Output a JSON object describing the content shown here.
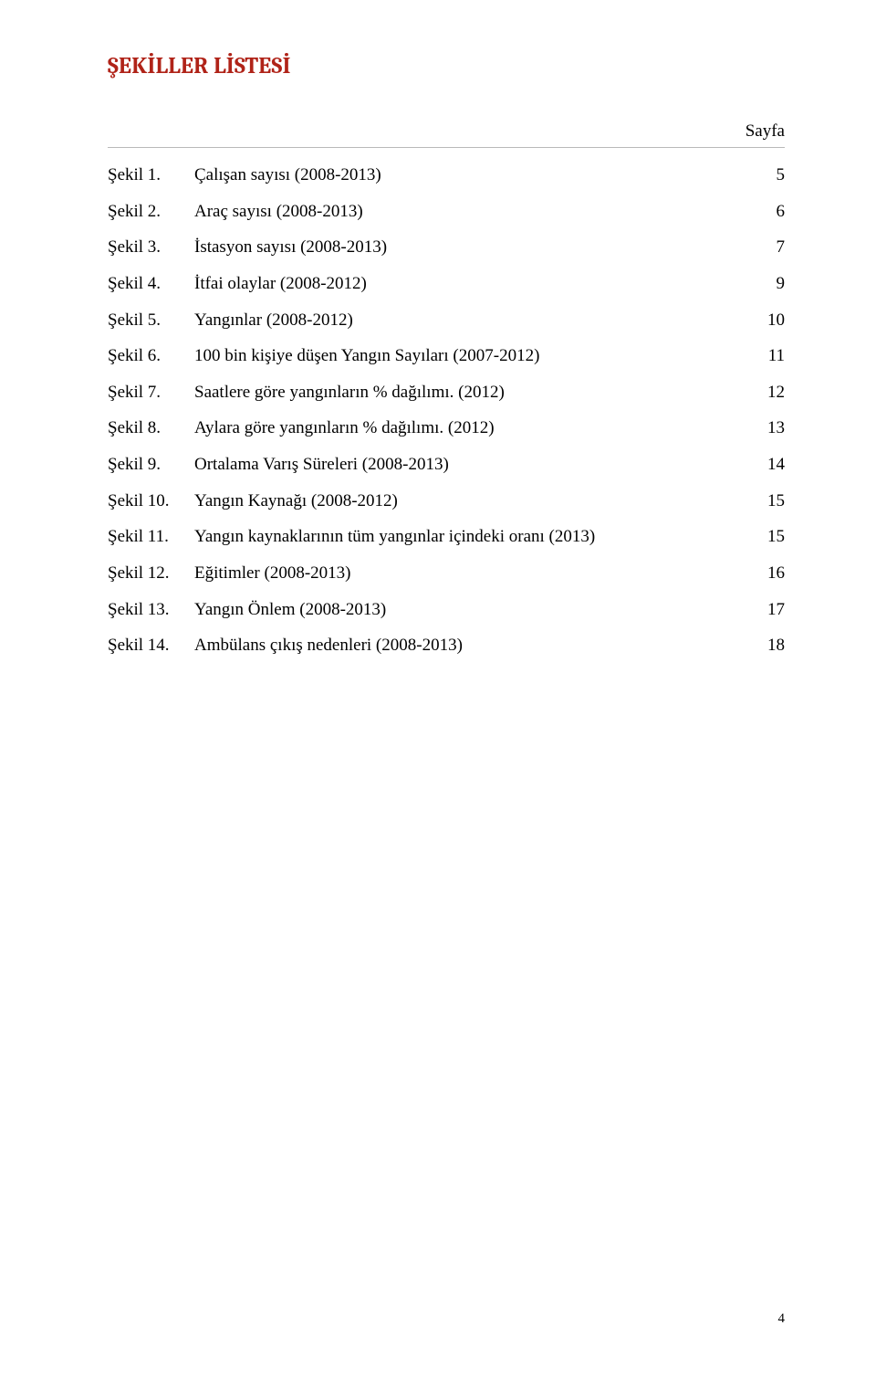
{
  "title_text": "ŞEKİLLER LİSTESİ",
  "title_color": "#b02318",
  "sayfa_label": "Sayfa",
  "rows": [
    {
      "label": "Şekil 1.",
      "desc": "Çalışan sayısı  (2008-2013)",
      "page": "5"
    },
    {
      "label": "Şekil 2.",
      "desc": "Araç sayısı  (2008-2013)",
      "page": "6"
    },
    {
      "label": "Şekil 3.",
      "desc": "İstasyon  sayısı  (2008-2013)",
      "page": "7"
    },
    {
      "label": "Şekil 4.",
      "desc": "İtfai olaylar (2008-2012)",
      "page": "9"
    },
    {
      "label": "Şekil 5.",
      "desc": "Yangınlar (2008-2012)",
      "page": "10"
    },
    {
      "label": "Şekil 6.",
      "desc": "100 bin kişiye düşen Yangın Sayıları (2007-2012)",
      "page": "11"
    },
    {
      "label": "Şekil 7.",
      "desc": "Saatlere göre yangınların % dağılımı. (2012)",
      "page": "12"
    },
    {
      "label": "Şekil 8.",
      "desc": "Aylara göre yangınların % dağılımı. (2012)",
      "page": "13"
    },
    {
      "label": "Şekil 9.",
      "desc": "Ortalama Varış Süreleri (2008-2013)",
      "page": "14"
    },
    {
      "label": "Şekil 10.",
      "desc": "Yangın Kaynağı (2008-2012)",
      "page": "15"
    },
    {
      "label": "Şekil 11.",
      "desc": "Yangın kaynaklarının tüm yangınlar içindeki oranı (2013)",
      "page": "15"
    },
    {
      "label": "Şekil 12.",
      "desc": "Eğitimler (2008-2013)",
      "page": "16"
    },
    {
      "label": "Şekil 13.",
      "desc": "Yangın Önlem (2008-2013)",
      "page": "17"
    },
    {
      "label": "Şekil 14.",
      "desc": "Ambülans çıkış nedenleri (2008-2013)",
      "page": "18"
    }
  ],
  "page_number": "4"
}
